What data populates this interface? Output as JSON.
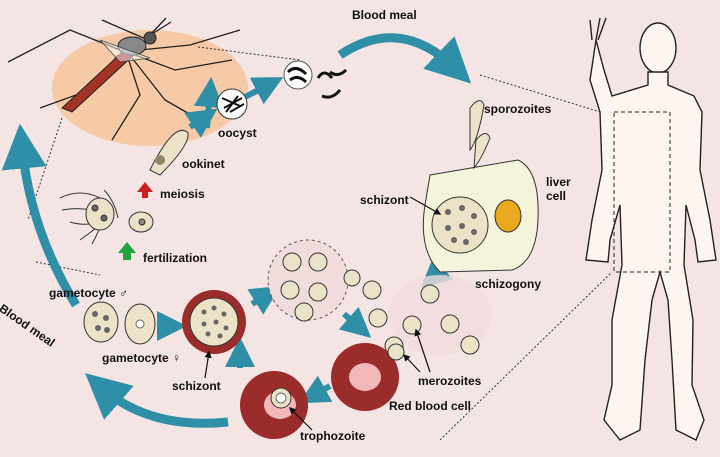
{
  "labels": {
    "blood_meal_top": "Blood meal",
    "blood_meal_left": "Blood meal",
    "sporozoites": "sporozoites",
    "liver_cell": "liver\ncell",
    "schizont_liver": "schizont",
    "schizogony": "schizogony",
    "merozoites": "merozoites",
    "red_blood_cell": "Red blood  cell",
    "trophozoite": "trophozoite",
    "schizont_blood": "schizont",
    "gametocyte_male": "gametocyte ♂",
    "gametocyte_female": "gametocyte ♀",
    "fertilization": "fertilization",
    "meiosis": "meiosis",
    "ookinet": "ookinet",
    "oocyst": "oocyst"
  },
  "colors": {
    "background": "#f5e4e4",
    "cycle_arrow": "#2f8fa6",
    "red_cell": "#9b2c2c",
    "red_cell_center": "#f0b8b8",
    "mosquito_blob": "#f6caa6",
    "parasite_fill": "#ebe2c8",
    "liver_cell_fill": "#f4f4dc",
    "nucleus": "#e8a91c",
    "meiosis_arrow": "#cc1f1f",
    "fertilization_arrow": "#1fa33c"
  }
}
